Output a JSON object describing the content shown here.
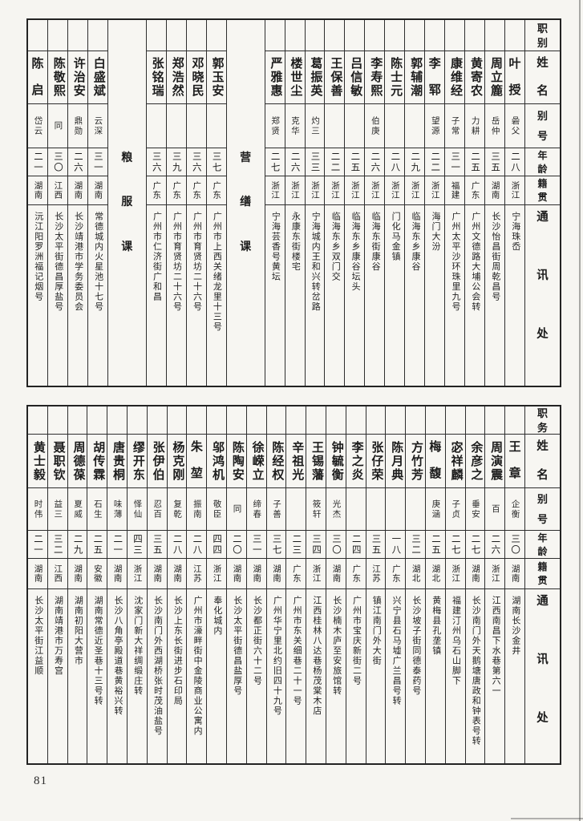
{
  "page_number": "81",
  "top_table": {
    "header": {
      "role": "职别",
      "name": "姓名",
      "alias": "别号",
      "age": "年龄",
      "origin": "籍贯",
      "address": "通讯处"
    },
    "entries": [
      {
        "name": "叶授",
        "alias": "碞父",
        "age": "二八",
        "origin": "浙江",
        "address": "宁海珠岙"
      },
      {
        "name": "周立簏",
        "alias": "岳仲",
        "age": "三五",
        "origin": "湖南",
        "address": "长沙怡昌街周乾昌号"
      },
      {
        "name": "黄寄农",
        "alias": "力耕",
        "age": "二五",
        "origin": "广东",
        "address": "广州文德路大埔公会转"
      },
      {
        "name": "康维经",
        "alias": "子常",
        "age": "三一",
        "origin": "福建",
        "address": "广州太平沙环珠里九号"
      },
      {
        "name": "李郓",
        "alias": "望源",
        "age": "二二",
        "origin": "浙江",
        "address": "海门大汾"
      },
      {
        "name": "郭辅潮",
        "alias": "",
        "age": "二九",
        "origin": "浙江",
        "address": "临海东乡康谷"
      },
      {
        "name": "陈士元",
        "alias": "",
        "age": "二八",
        "origin": "浙江",
        "address": "门化马金镇"
      },
      {
        "name": "李寿熙",
        "alias": "伯庚",
        "age": "二六",
        "origin": "浙江",
        "address": "临海东街康谷"
      },
      {
        "name": "吕信敏",
        "alias": "",
        "age": "二五",
        "origin": "浙江",
        "address": "临海东乡康谷坛头"
      },
      {
        "name": "王保善",
        "alias": "",
        "age": "二二",
        "origin": "浙江",
        "address": "临海东乡双门交"
      },
      {
        "name": "葛振英",
        "alias": "灼三",
        "age": "三三",
        "origin": "浙江",
        "address": "宁海城内王和兴转岔路"
      },
      {
        "name": "楼世尘",
        "alias": "克华",
        "age": "二六",
        "origin": "浙江",
        "address": "永康东街楼宅"
      },
      {
        "name": "严雅惠",
        "alias": "郑贤",
        "age": "二七",
        "origin": "浙江",
        "address": "宁海芸香号黄坛"
      },
      {
        "divider": "营缮课"
      },
      {
        "name": "郭玉安",
        "alias": "",
        "age": "三七",
        "origin": "广东",
        "address": "广州市上西关绪龙里十三号"
      },
      {
        "name": "邓晓民",
        "alias": "",
        "age": "三六",
        "origin": "广东",
        "address": "广州市育贤坊二十六号"
      },
      {
        "name": "郑浩然",
        "alias": "",
        "age": "三九",
        "origin": "广东",
        "address": "广州市育贤坊二十六号"
      },
      {
        "name": "张铭瑞",
        "alias": "",
        "age": "三六",
        "origin": "广东",
        "address": "广州市仁济街广和昌"
      },
      {
        "divider": "粮服课"
      },
      {
        "name": "白盛斌",
        "alias": "云深",
        "age": "三一",
        "origin": "湖南",
        "address": "常德城内火星池十七号"
      },
      {
        "name": "许治安",
        "alias": "鼎勋",
        "age": "二六",
        "origin": "湖南",
        "address": "长沙靖港市学务委员会"
      },
      {
        "name": "陈敬熙",
        "alias": "同",
        "age": "三〇",
        "origin": "江西",
        "address": "长沙太平街德昌厚盐号"
      },
      {
        "name": "陈启",
        "alias": "岱云",
        "age": "二一",
        "origin": "湖南",
        "address": "沅江阳罗洲福记烟号"
      }
    ]
  },
  "bottom_table": {
    "header": {
      "role": "职务",
      "name": "姓名",
      "alias": "别号",
      "age": "年龄",
      "origin": "籍贯",
      "address": "通讯处"
    },
    "entries": [
      {
        "name": "王章",
        "alias": "企衡",
        "age": "三〇",
        "origin": "湖南",
        "address": "湖南长沙金井"
      },
      {
        "name": "周演震",
        "alias": "百",
        "age": "二六",
        "origin": "浙江",
        "address": "江西南昌下水巷第六一"
      },
      {
        "name": "余彦之",
        "alias": "垂安",
        "age": "二七",
        "origin": "湖南",
        "address": "长沙南门外天鹅塘唐政和钟表号转"
      },
      {
        "name": "宓祥麟",
        "alias": "子贞",
        "age": "二七",
        "origin": "浙江",
        "address": "福建汀州乌石山脚下"
      },
      {
        "name": "梅馥",
        "alias": "庚涵",
        "age": "二五",
        "origin": "湖北",
        "address": "黄梅县孔垄镇"
      },
      {
        "name": "方竹芳",
        "alias": "",
        "age": "三二",
        "origin": "湖北",
        "address": "长沙坡子街同德泰药号"
      },
      {
        "name": "陈月典",
        "alias": "",
        "age": "一八",
        "origin": "广东",
        "address": "兴宁县石马墟广兰昌号转"
      },
      {
        "name": "张仔荣",
        "alias": "",
        "age": "三五",
        "origin": "江苏",
        "address": "镇江南门外大街"
      },
      {
        "name": "李之炎",
        "alias": "",
        "age": "二四",
        "origin": "广东",
        "address": "广州市宝庆新街二号"
      },
      {
        "name": "钟毓衡",
        "alias": "光杰",
        "age": "三〇",
        "origin": "湖南",
        "address": "长沙楠木庐至安旅馆转"
      },
      {
        "name": "王锡藩",
        "alias": "筱轩",
        "age": "三四",
        "origin": "浙江",
        "address": "江西桂林八达巷杨茂棠木店"
      },
      {
        "name": "辛祖光",
        "alias": "",
        "age": "二三",
        "origin": "广东",
        "address": "广州市东关细巷二十一号"
      },
      {
        "name": "陈经权",
        "alias": "子善",
        "age": "三七",
        "origin": "湖南",
        "address": "广州华宁里北约旧四十九号"
      },
      {
        "name": "徐嵘立",
        "alias": "缔春",
        "age": "三一",
        "origin": "湖南",
        "address": "长沙都正街六十二号"
      },
      {
        "name": "陈陶安",
        "alias": "同",
        "age": "二〇",
        "origin": "湖南",
        "address": "长沙太平街德昌盐厚号"
      },
      {
        "name": "邬鸿机",
        "alias": "敬臣",
        "age": "四四",
        "origin": "浙江",
        "address": "奉化城内"
      },
      {
        "name": "朱堃",
        "alias": "振南",
        "age": "二八",
        "origin": "江苏",
        "address": "广州市濠畔街中金陵商业公寓内"
      },
      {
        "name": "杨克刚",
        "alias": "复乾",
        "age": "二八",
        "origin": "湖南",
        "address": "长沙上东长街进步石印局"
      },
      {
        "name": "张伊伯",
        "alias": "忍百",
        "age": "三五",
        "origin": "湖南",
        "address": "长沙南门外西湖桥张时茂油盐号"
      },
      {
        "name": "缪开东",
        "alias": "怿仙",
        "age": "四三",
        "origin": "浙江",
        "address": "沈家门新大祥绸缎庄转"
      },
      {
        "name": "唐贵桐",
        "alias": "味薄",
        "age": "二一",
        "origin": "湖南",
        "address": "长沙八角亭殿道巷黄裕兴转"
      },
      {
        "name": "胡传霖",
        "alias": "石生",
        "age": "二五",
        "origin": "安徽",
        "address": "湖南常德近圣巷十三号转"
      },
      {
        "name": "周德葆",
        "alias": "夏威",
        "age": "二九",
        "origin": "湖南",
        "address": "湖南初阳大营市"
      },
      {
        "name": "聂职钦",
        "alias": "益三",
        "age": "三二",
        "origin": "江西",
        "address": "湖南靖港市万寿宫"
      },
      {
        "name": "黄士毅",
        "alias": "时伟",
        "age": "二一",
        "origin": "湖南",
        "address": "长沙太平街江益顺"
      }
    ]
  }
}
